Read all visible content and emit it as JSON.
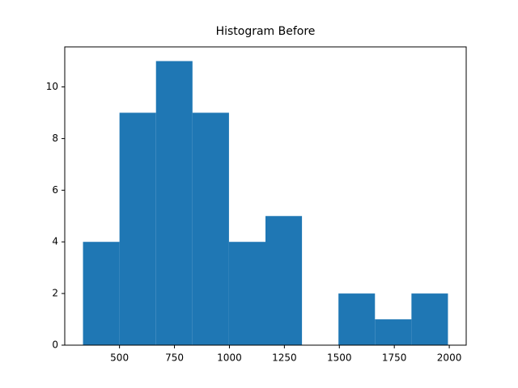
{
  "chart_data": {
    "type": "histogram",
    "title": "Histogram Before",
    "bins": [
      334,
      500,
      666,
      832,
      998,
      1164,
      1330,
      1496,
      1662,
      1828,
      1994
    ],
    "values": [
      4,
      9,
      11,
      9,
      4,
      5,
      0,
      2,
      1,
      2
    ],
    "color": "#1f77b4",
    "xlim": [
      251,
      2077
    ],
    "xticks": [
      500,
      750,
      1000,
      1250,
      1500,
      1750,
      2000
    ],
    "ylim": [
      0,
      11.55
    ],
    "yticks": [
      0,
      2,
      4,
      6,
      8,
      10
    ],
    "grid": false
  }
}
